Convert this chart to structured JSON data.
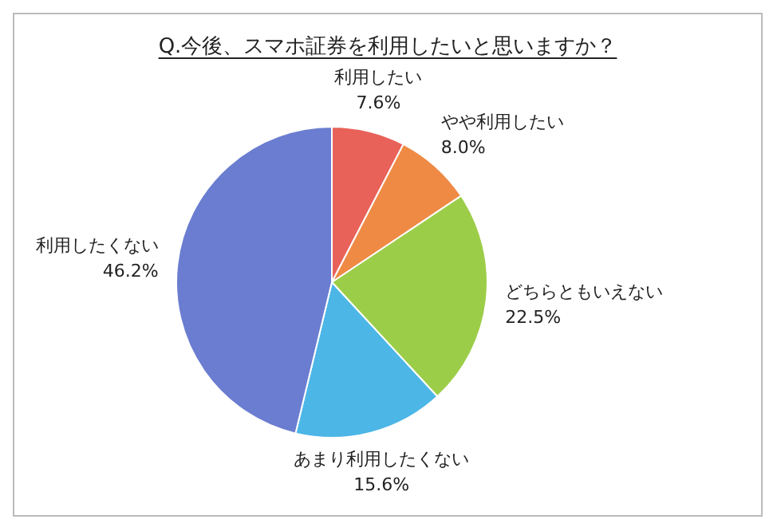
{
  "chart_data": {
    "type": "pie",
    "title": "Q.今後、スマホ証券を利用したいと思いますか？",
    "categories": [
      "利用したい",
      "やや利用したい",
      "どちらともいえない",
      "あまり利用したくない",
      "利用したくない"
    ],
    "values": [
      7.6,
      8.0,
      22.5,
      15.6,
      46.2
    ],
    "value_labels": [
      "7.6%",
      "8.0%",
      "22.5%",
      "15.6%",
      "46.2%"
    ],
    "colors": [
      "#e8625a",
      "#ef8a45",
      "#9ccd48",
      "#4cb6e6",
      "#6a7dd0"
    ],
    "legend": false
  }
}
